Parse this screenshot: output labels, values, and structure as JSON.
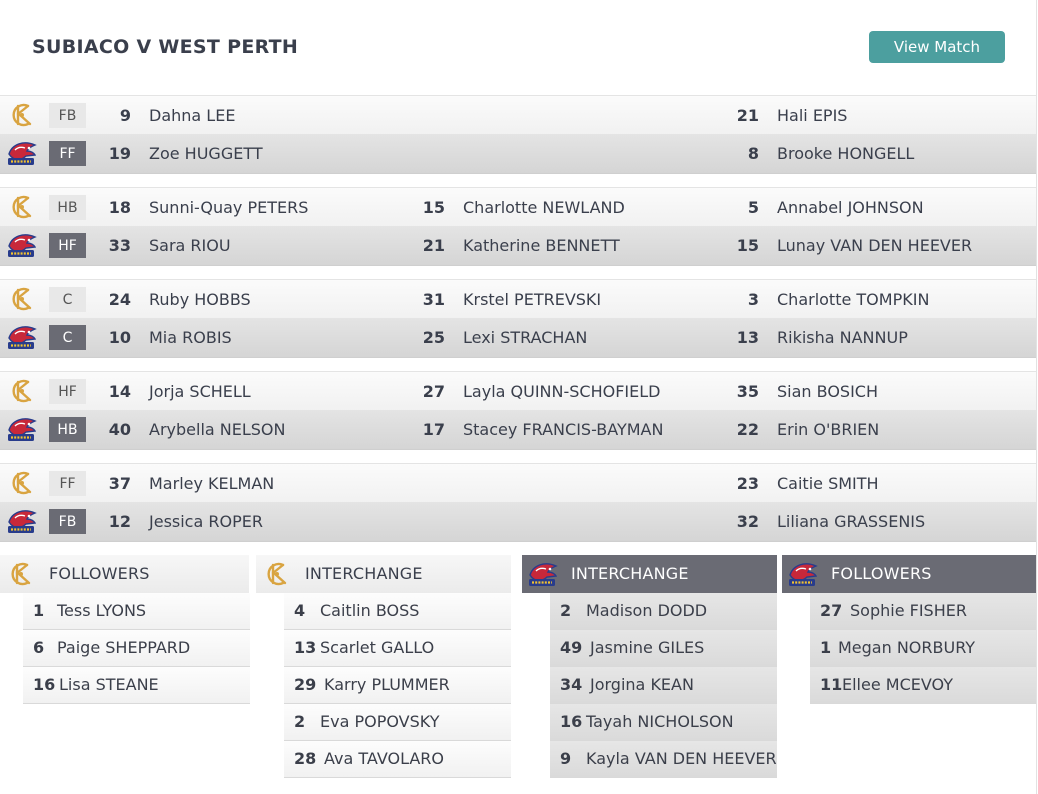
{
  "header": {
    "title": "SUBIACO V WEST PERTH",
    "view_match": "View Match"
  },
  "colors": {
    "accent": "#4c9f9f",
    "wp_badge": "#6a6b74",
    "subiaco_gold": "#d9a441",
    "falcons_red": "#c8283a",
    "falcons_navy": "#283c8c"
  },
  "lines": [
    {
      "sub": {
        "pos": "FB",
        "p1": {
          "num": "9",
          "name": "Dahna LEE"
        },
        "p2": {
          "num": "",
          "name": ""
        },
        "p3": {
          "num": "21",
          "name": "Hali EPIS"
        }
      },
      "wp": {
        "pos": "FF",
        "p1": {
          "num": "19",
          "name": "Zoe HUGGETT"
        },
        "p2": {
          "num": "",
          "name": ""
        },
        "p3": {
          "num": "8",
          "name": "Brooke HONGELL"
        }
      }
    },
    {
      "sub": {
        "pos": "HB",
        "p1": {
          "num": "18",
          "name": "Sunni-Quay PETERS"
        },
        "p2": {
          "num": "15",
          "name": "Charlotte NEWLAND"
        },
        "p3": {
          "num": "5",
          "name": "Annabel JOHNSON"
        }
      },
      "wp": {
        "pos": "HF",
        "p1": {
          "num": "33",
          "name": "Sara RIOU"
        },
        "p2": {
          "num": "21",
          "name": "Katherine BENNETT"
        },
        "p3": {
          "num": "15",
          "name": "Lunay VAN DEN HEEVER"
        }
      }
    },
    {
      "sub": {
        "pos": "C",
        "p1": {
          "num": "24",
          "name": "Ruby HOBBS"
        },
        "p2": {
          "num": "31",
          "name": "Krstel PETREVSKI"
        },
        "p3": {
          "num": "3",
          "name": "Charlotte TOMPKIN"
        }
      },
      "wp": {
        "pos": "C",
        "p1": {
          "num": "10",
          "name": "Mia ROBIS"
        },
        "p2": {
          "num": "25",
          "name": "Lexi STRACHAN"
        },
        "p3": {
          "num": "13",
          "name": "Rikisha NANNUP"
        }
      }
    },
    {
      "sub": {
        "pos": "HF",
        "p1": {
          "num": "14",
          "name": "Jorja SCHELL"
        },
        "p2": {
          "num": "27",
          "name": "Layla QUINN-SCHOFIELD"
        },
        "p3": {
          "num": "35",
          "name": "Sian BOSICH"
        }
      },
      "wp": {
        "pos": "HB",
        "p1": {
          "num": "40",
          "name": "Arybella NELSON"
        },
        "p2": {
          "num": "17",
          "name": "Stacey FRANCIS-BAYMAN"
        },
        "p3": {
          "num": "22",
          "name": "Erin O'BRIEN"
        }
      }
    },
    {
      "sub": {
        "pos": "FF",
        "p1": {
          "num": "37",
          "name": "Marley KELMAN"
        },
        "p2": {
          "num": "",
          "name": ""
        },
        "p3": {
          "num": "23",
          "name": "Caitie SMITH"
        }
      },
      "wp": {
        "pos": "FB",
        "p1": {
          "num": "12",
          "name": "Jessica ROPER"
        },
        "p2": {
          "num": "",
          "name": ""
        },
        "p3": {
          "num": "32",
          "name": "Liliana GRASSENIS"
        }
      }
    }
  ],
  "benches": [
    {
      "team": "sub",
      "title": "FOLLOWERS",
      "players": [
        {
          "num": "1",
          "name": "Tess LYONS"
        },
        {
          "num": "6",
          "name": "Paige SHEPPARD"
        },
        {
          "num": "16",
          "name": "Lisa STEANE"
        }
      ]
    },
    {
      "team": "sub",
      "title": "INTERCHANGE",
      "players": [
        {
          "num": "4",
          "name": "Caitlin BOSS"
        },
        {
          "num": "13",
          "name": "Scarlet GALLO"
        },
        {
          "num": "29",
          "name": "Karry PLUMMER"
        },
        {
          "num": "2",
          "name": "Eva POPOVSKY"
        },
        {
          "num": "28",
          "name": "Ava TAVOLARO"
        }
      ]
    },
    {
      "team": "wp",
      "title": "INTERCHANGE",
      "players": [
        {
          "num": "2",
          "name": "Madison DODD"
        },
        {
          "num": "49",
          "name": "Jasmine GILES"
        },
        {
          "num": "34",
          "name": "Jorgina KEAN"
        },
        {
          "num": "16",
          "name": "Tayah NICHOLSON"
        },
        {
          "num": "9",
          "name": "Kayla VAN DEN HEEVER"
        }
      ]
    },
    {
      "team": "wp",
      "title": "FOLLOWERS",
      "players": [
        {
          "num": "27",
          "name": "Sophie FISHER"
        },
        {
          "num": "1",
          "name": "Megan NORBURY"
        },
        {
          "num": "11",
          "name": "Ellee MCEVOY"
        }
      ]
    }
  ],
  "logos": {
    "subiaco": "subiaco-logo-icon",
    "west_perth": "west-perth-falcons-logo-icon"
  }
}
